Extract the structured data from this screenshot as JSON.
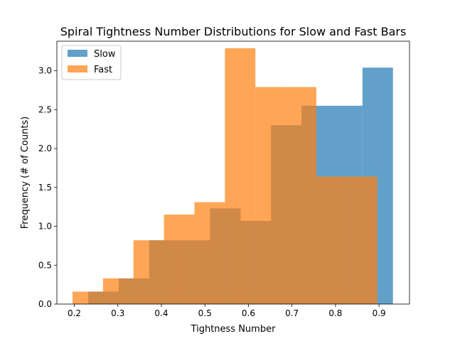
{
  "chart_data": {
    "type": "bar",
    "title": "Spiral Tightness Number Distributions for Slow and Fast Bars",
    "xlabel": "Tightness Number",
    "ylabel": "Frequency (# of Counts)",
    "xlim": [
      0.16,
      0.97
    ],
    "ylim": [
      0.0,
      3.38
    ],
    "xticks": [
      0.2,
      0.3,
      0.4,
      0.5,
      0.6,
      0.7,
      0.8,
      0.9
    ],
    "xtick_labels": [
      "0.2",
      "0.3",
      "0.4",
      "0.5",
      "0.6",
      "0.7",
      "0.8",
      "0.9"
    ],
    "yticks": [
      0.0,
      0.5,
      1.0,
      1.5,
      2.0,
      2.5,
      3.0
    ],
    "ytick_labels": [
      "0.0",
      "0.5",
      "1.0",
      "1.5",
      "2.0",
      "2.5",
      "3.0"
    ],
    "legend_position": "top-left",
    "grid": false,
    "series": [
      {
        "name": "Slow",
        "color": "#1f77b4",
        "opacity": 0.7,
        "bin_edges": [
          0.232,
          0.302,
          0.372,
          0.442,
          0.512,
          0.582,
          0.652,
          0.722,
          0.792,
          0.862,
          0.932
        ],
        "values": [
          0.16,
          0.33,
          0.82,
          0.82,
          1.23,
          1.07,
          2.3,
          2.55,
          2.55,
          3.04
        ]
      },
      {
        "name": "Fast",
        "color": "#ff7f0e",
        "opacity": 0.7,
        "bin_edges": [
          0.196,
          0.266,
          0.336,
          0.406,
          0.476,
          0.546,
          0.616,
          0.686,
          0.756,
          0.826,
          0.896
        ],
        "values": [
          0.16,
          0.33,
          0.82,
          1.15,
          1.31,
          3.29,
          2.79,
          2.79,
          1.64,
          1.64
        ]
      }
    ]
  }
}
